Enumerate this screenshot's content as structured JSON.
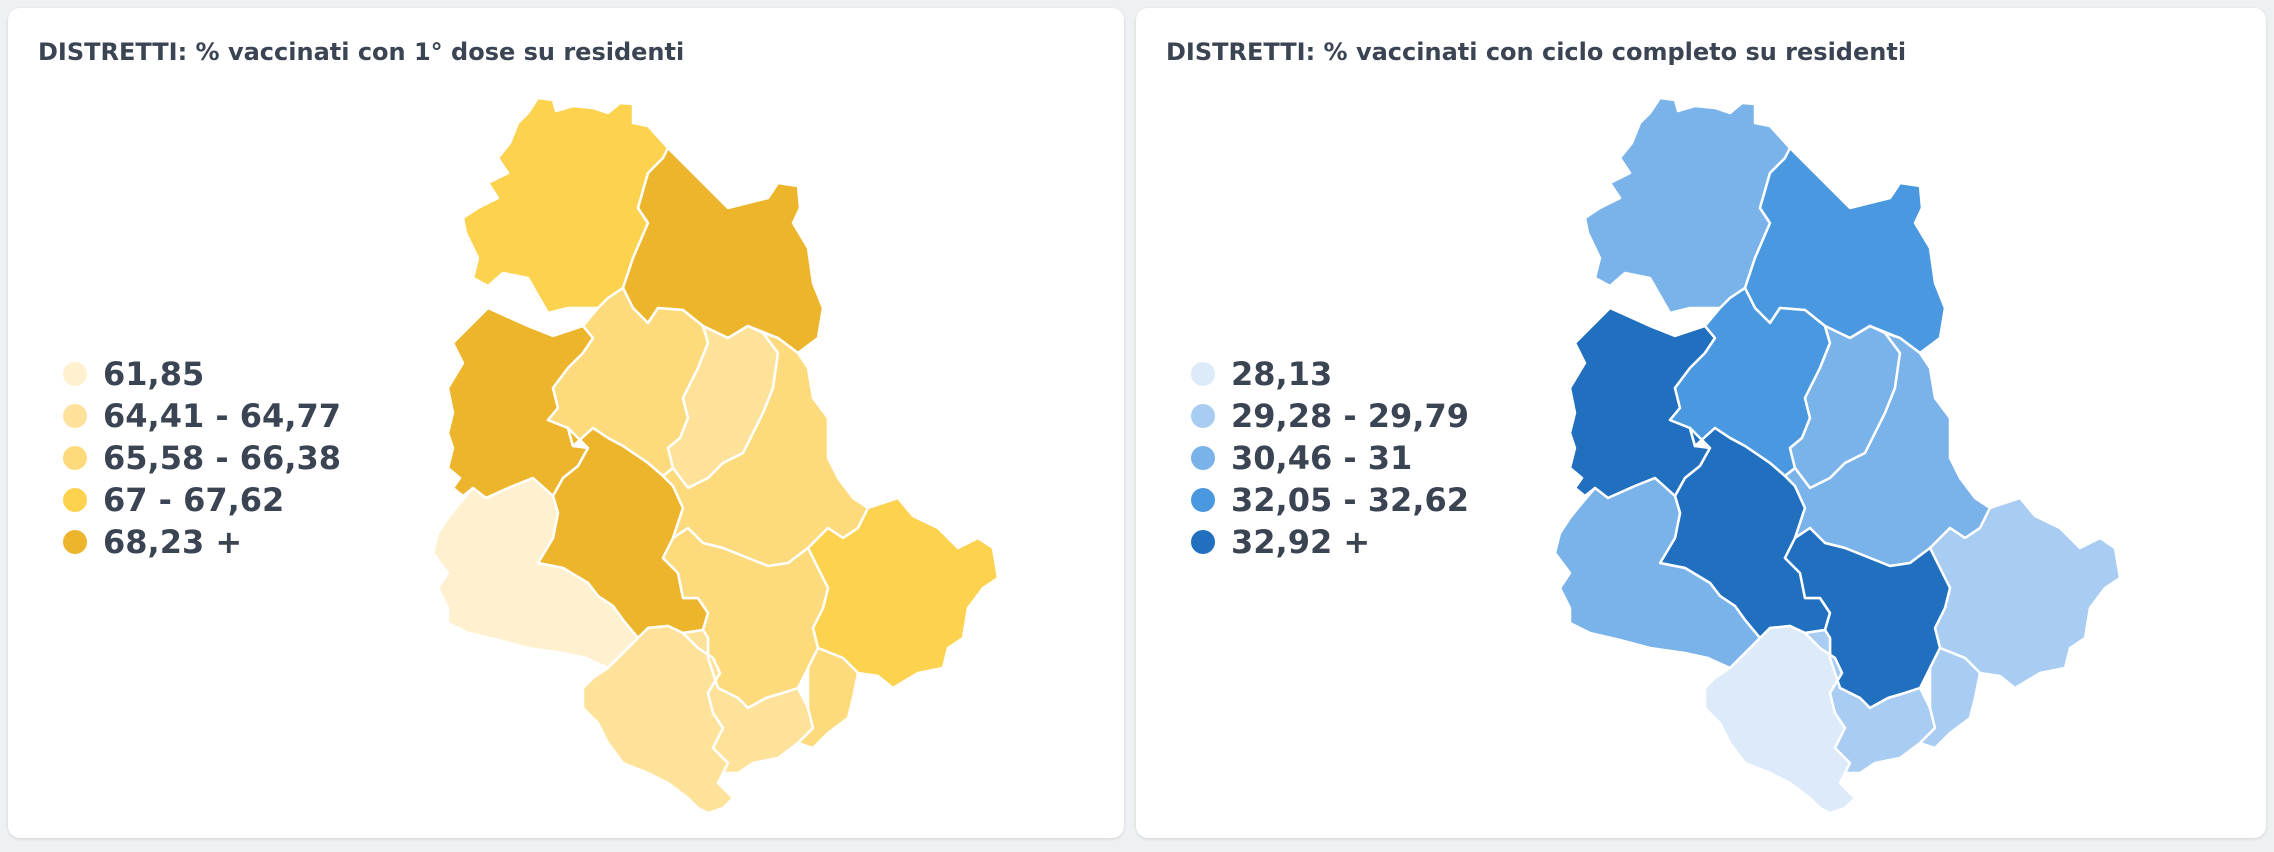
{
  "panels": [
    {
      "title": "DISTRETTI: % vaccinati con 1° dose su residenti",
      "legend": [
        {
          "label": "61,85",
          "color": "#fff1cf"
        },
        {
          "label": "64,41 - 64,77",
          "color": "#fee29a"
        },
        {
          "label": "65,58 - 66,38",
          "color": "#fdda7c"
        },
        {
          "label": "67 - 67,62",
          "color": "#fcd24f"
        },
        {
          "label": "68,23 +",
          "color": "#ecb52c"
        }
      ],
      "districts": [
        {
          "id": "alto-tevere",
          "class": 3
        },
        {
          "id": "gubbio-gualdo",
          "class": 4
        },
        {
          "id": "trasimeno",
          "class": 4
        },
        {
          "id": "perugino-nord",
          "class": 2
        },
        {
          "id": "assisano",
          "class": 1
        },
        {
          "id": "perugino",
          "class": 4
        },
        {
          "id": "media-valle-tevere",
          "class": 0
        },
        {
          "id": "foligno",
          "class": 2
        },
        {
          "id": "spoleto",
          "class": 3
        },
        {
          "id": "todi",
          "class": 2
        },
        {
          "id": "orvieto",
          "class": 1
        },
        {
          "id": "narni-amelia",
          "class": 1
        },
        {
          "id": "terni",
          "class": 2
        }
      ]
    },
    {
      "title": "DISTRETTI: % vaccinati con ciclo completo su residenti",
      "legend": [
        {
          "label": "28,13",
          "color": "#dceafa"
        },
        {
          "label": "29,28 - 29,79",
          "color": "#a9cdf2"
        },
        {
          "label": "30,46 - 31",
          "color": "#7ab3e9"
        },
        {
          "label": "32,05 - 32,62",
          "color": "#4a99e0"
        },
        {
          "label": "32,92 +",
          "color": "#2170c0"
        }
      ],
      "districts": [
        {
          "id": "alto-tevere",
          "class": 2
        },
        {
          "id": "gubbio-gualdo",
          "class": 3
        },
        {
          "id": "trasimeno",
          "class": 4
        },
        {
          "id": "perugino-nord",
          "class": 3
        },
        {
          "id": "assisano",
          "class": 2
        },
        {
          "id": "perugino",
          "class": 4
        },
        {
          "id": "media-valle-tevere",
          "class": 2
        },
        {
          "id": "foligno",
          "class": 2
        },
        {
          "id": "spoleto",
          "class": 1
        },
        {
          "id": "todi",
          "class": 4
        },
        {
          "id": "orvieto",
          "class": 0
        },
        {
          "id": "narni-amelia",
          "class": 1
        },
        {
          "id": "terni",
          "class": 1
        }
      ]
    }
  ]
}
